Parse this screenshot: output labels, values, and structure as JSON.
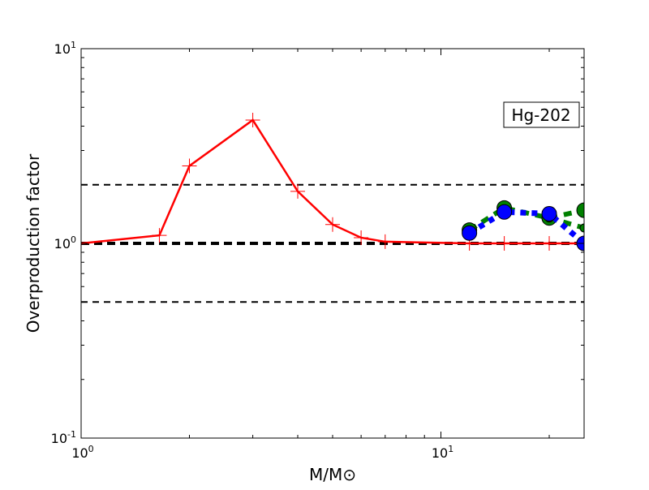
{
  "chart_data": {
    "type": "line",
    "title": "",
    "xlabel": "M/M⊙",
    "ylabel": "Overproduction factor",
    "xscale": "log",
    "yscale": "log",
    "xlim": [
      1,
      25
    ],
    "ylim": [
      0.1,
      10
    ],
    "x_tick_labels": [
      {
        "base": "10",
        "exp": "0"
      },
      {
        "base": "10",
        "exp": "1"
      }
    ],
    "y_tick_labels": [
      {
        "base": "10",
        "exp": "-1"
      },
      {
        "base": "10",
        "exp": "0"
      },
      {
        "base": "10",
        "exp": "1"
      }
    ],
    "annotation": "Hg-202",
    "reference_lines": [
      {
        "y": 2.0,
        "style": "dashed"
      },
      {
        "y": 1.0,
        "style": "dashed-thick"
      },
      {
        "y": 0.5,
        "style": "dashed"
      }
    ],
    "series": [
      {
        "color": "#ff0000",
        "style": "solid",
        "marker": "plus",
        "x": [
          1,
          1.65,
          2,
          3,
          4,
          5,
          6,
          7,
          12,
          15,
          20,
          25
        ],
        "y": [
          1.0,
          1.1,
          2.5,
          4.3,
          1.85,
          1.25,
          1.07,
          1.02,
          1.0,
          1.0,
          1.0,
          1.0
        ]
      },
      {
        "color": "#008000",
        "style": "dashed",
        "marker": "circle",
        "x": [
          12,
          15,
          20,
          25
        ],
        "y": [
          1.17,
          1.52,
          1.35,
          1.48
        ]
      },
      {
        "color": "#008000",
        "style": "dashed",
        "marker": "small-circle",
        "x": [
          20,
          25
        ],
        "y": [
          1.35,
          1.2
        ]
      },
      {
        "color": "#0000ff",
        "style": "dotted",
        "marker": "circle",
        "x": [
          12,
          15,
          20,
          25
        ],
        "y": [
          1.13,
          1.45,
          1.42,
          1.0
        ]
      }
    ],
    "grid": false,
    "legend": "none"
  }
}
